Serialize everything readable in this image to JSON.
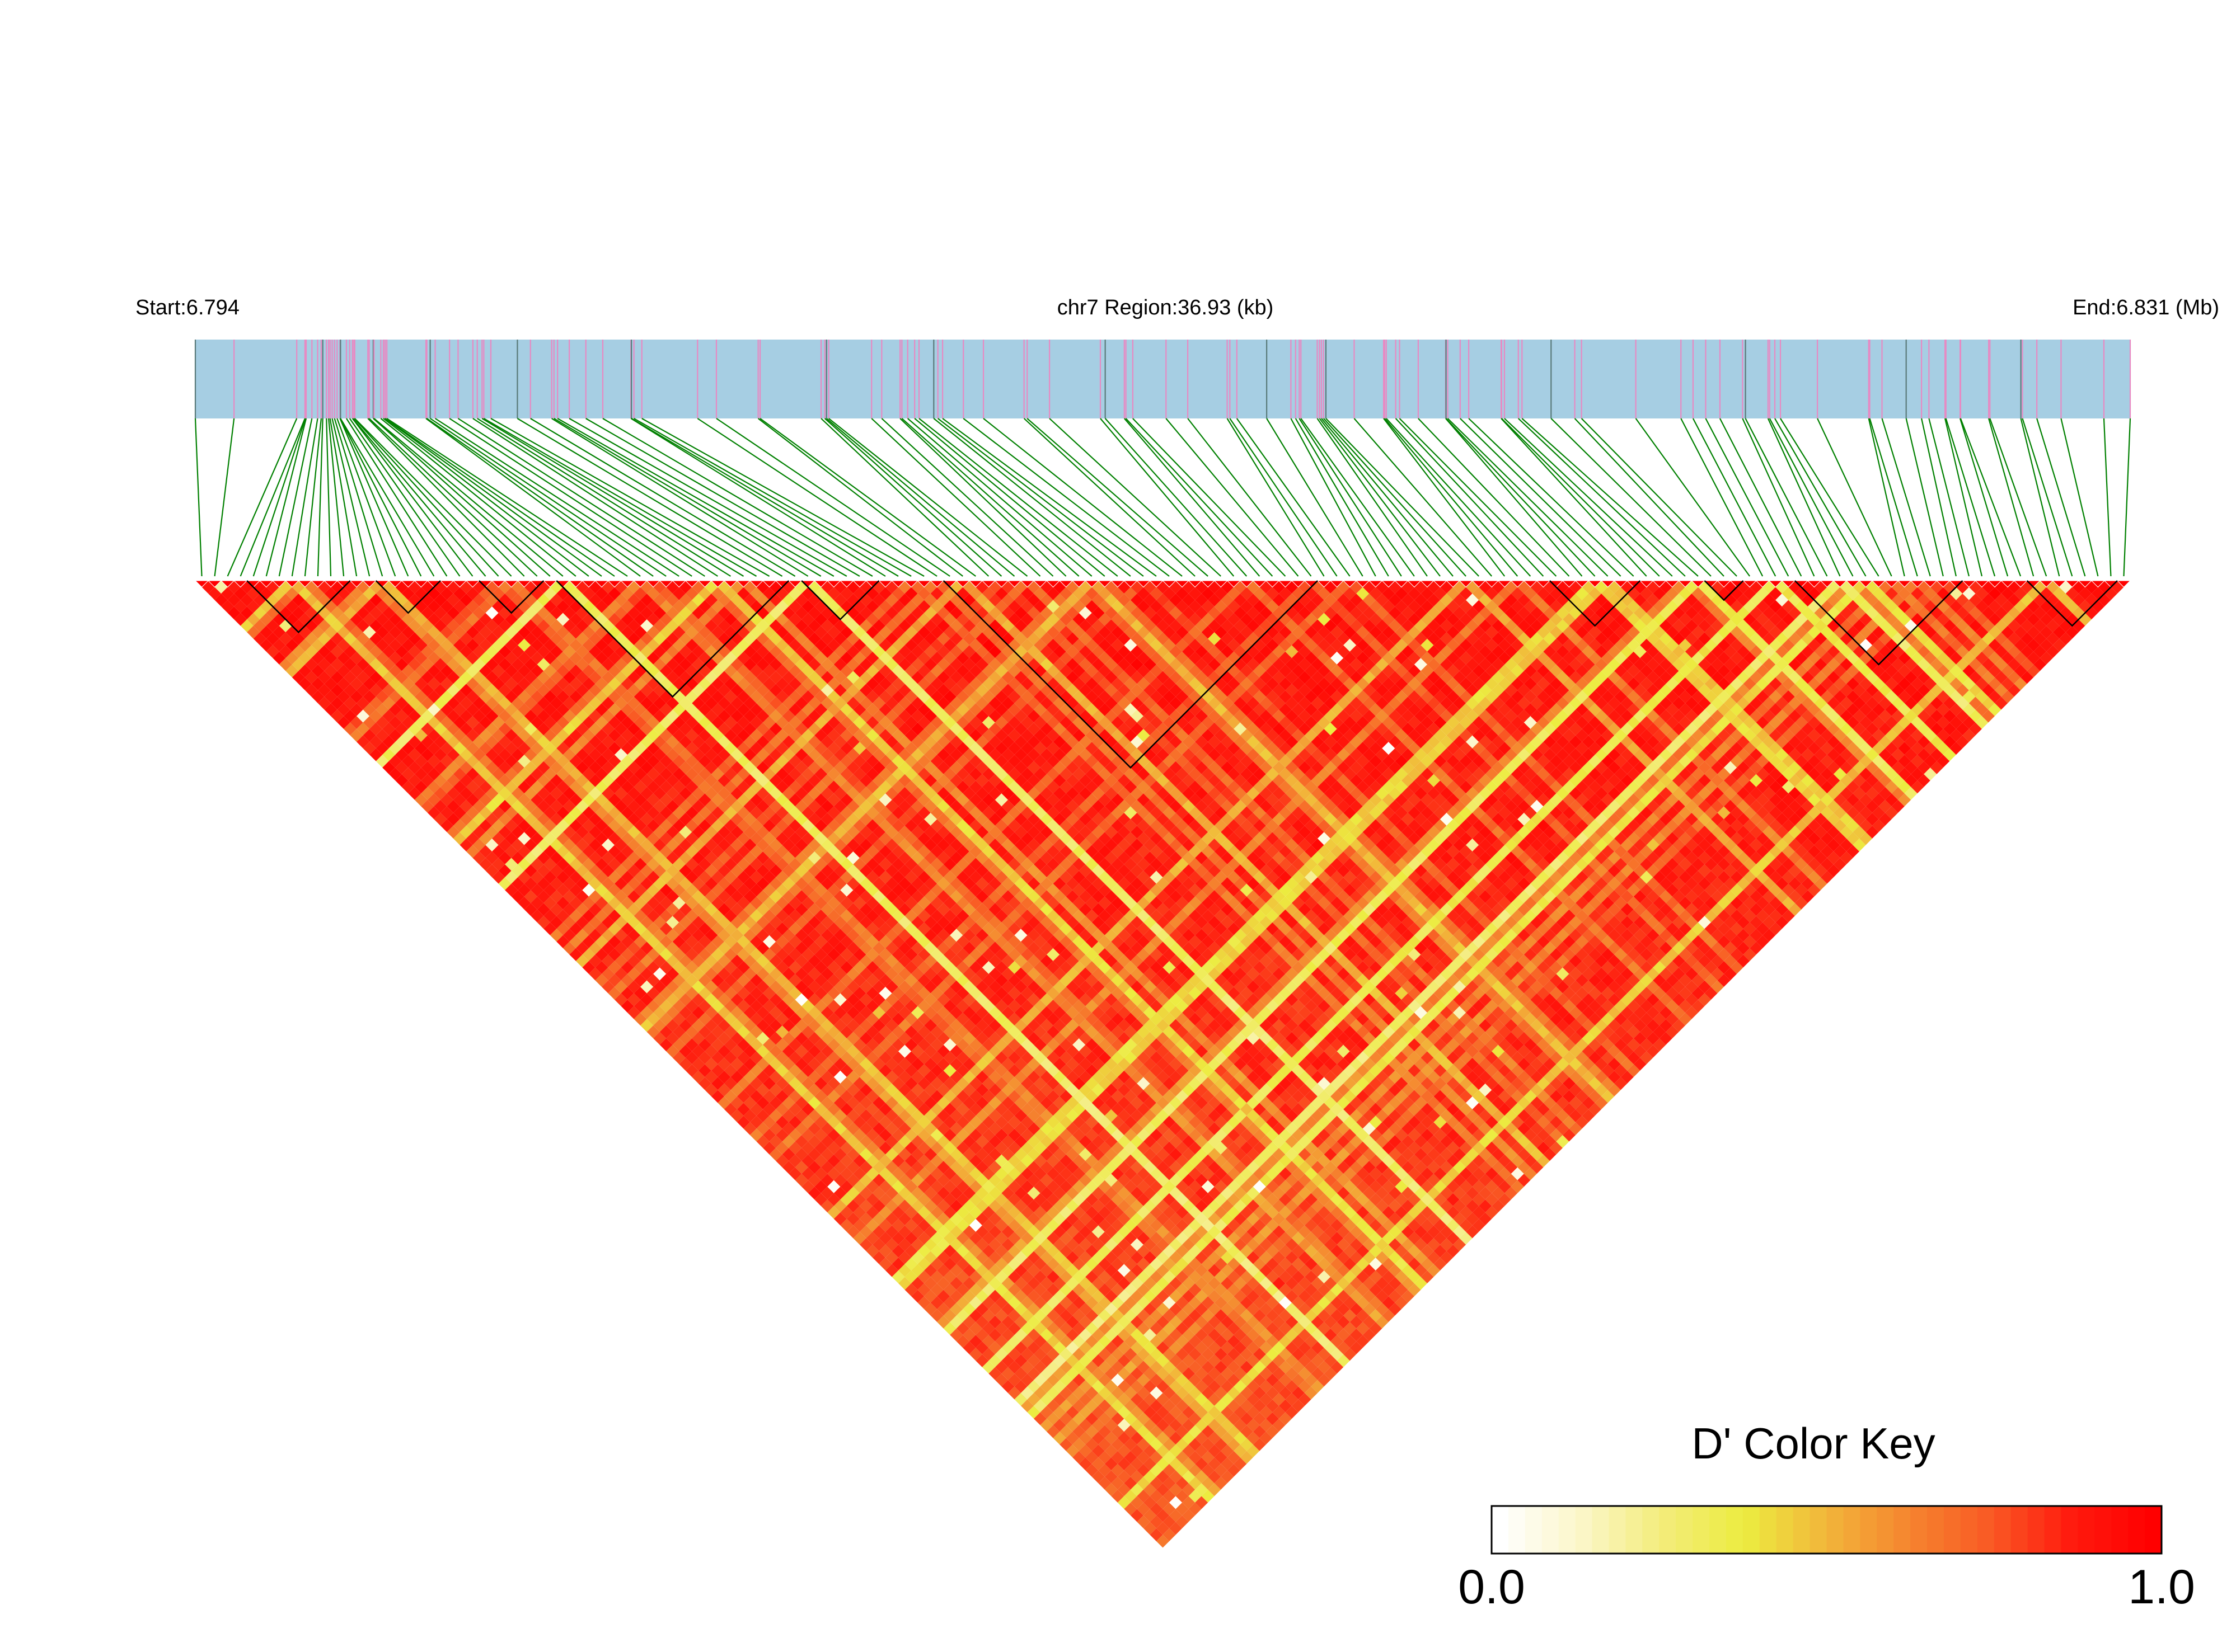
{
  "header": {
    "start_label": "Start:6.794",
    "region_label": "chr7 Region:36.93 (kb)",
    "end_label": "End:6.831 (Mb)"
  },
  "colors": {
    "track_background": "#a6cee3",
    "snp_mark_pink": "#e78ac3",
    "snp_mark_dark": "#5a7a7a",
    "connector_green": "#008000",
    "block_outline": "#000000",
    "ld_low": "#ffffff",
    "ld_mid": "#ecec40",
    "ld_high": "#ff0000"
  },
  "color_key": {
    "title": "D' Color Key",
    "min_label": "0.0",
    "max_label": "1.0",
    "stops": [
      "#ffffff",
      "#fbf6c8",
      "#f3ec7a",
      "#ecec40",
      "#f2b53a",
      "#f5852f",
      "#f95a24",
      "#ff1a0e",
      "#ff0000"
    ]
  },
  "chart_data": {
    "type": "heatmap",
    "title": "",
    "description_of_values": "Pairwise D' linkage disequilibrium between SNPs in a region of chr7 (6.794–6.831 Mb, 36.93 kb). Predominantly high D' (red) with streaks of lower values (yellow/white).",
    "region": {
      "chromosome": "chr7",
      "start_mb": 6.794,
      "end_mb": 6.831,
      "length_kb": 36.93
    },
    "n_snps": 150,
    "value_range": [
      0,
      1
    ],
    "haplotype_blocks": [
      [
        4,
        11
      ],
      [
        14,
        18
      ],
      [
        22,
        26
      ],
      [
        28,
        45
      ],
      [
        47,
        52
      ],
      [
        58,
        86
      ],
      [
        105,
        111
      ],
      [
        117,
        119
      ],
      [
        124,
        136
      ],
      [
        142,
        148
      ]
    ],
    "legend": "bottom-right"
  }
}
